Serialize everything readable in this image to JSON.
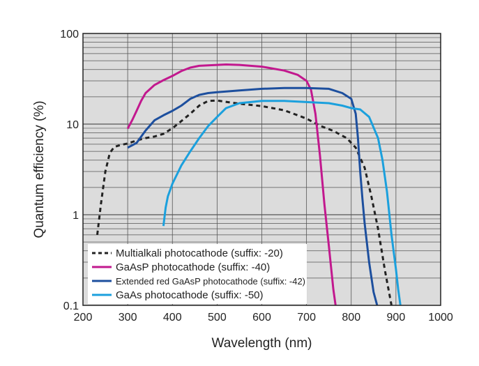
{
  "chart_data": {
    "type": "line",
    "xlabel": "Wavelength (nm)",
    "ylabel": "Quantum efficiency (%)",
    "xlim": [
      200,
      1000
    ],
    "ylim": [
      0.1,
      100
    ],
    "yscale": "log",
    "xticks": [
      200,
      300,
      400,
      500,
      600,
      700,
      800,
      900,
      1000
    ],
    "xtick_labels": [
      "200",
      "300",
      "400",
      "500",
      "600",
      "700",
      "800",
      "900",
      "1000"
    ],
    "yticks": [
      0.1,
      1,
      10,
      100
    ],
    "ytick_labels": [
      "0.1",
      "1",
      "10",
      "100"
    ],
    "grid": true,
    "legend_position": "bottom-left",
    "plot_background": "#dcdcdc",
    "series": [
      {
        "name": "Multialkali photocathode (suffix: -20)",
        "color": "#222222",
        "style": "dashed",
        "x": [
          232,
          240,
          250,
          260,
          270,
          285,
          300,
          320,
          340,
          360,
          380,
          400,
          420,
          440,
          460,
          480,
          500,
          520,
          550,
          600,
          650,
          700,
          730,
          760,
          790,
          810,
          830,
          845,
          860,
          875,
          890
        ],
        "y": [
          0.6,
          1.3,
          3.0,
          4.8,
          5.6,
          5.9,
          6.1,
          6.6,
          7.0,
          7.3,
          7.8,
          9.0,
          10.8,
          13.0,
          16.0,
          18.0,
          18.2,
          17.6,
          16.8,
          15.8,
          14.2,
          11.5,
          9.6,
          8.4,
          7.0,
          5.5,
          3.3,
          1.6,
          0.7,
          0.25,
          0.1
        ]
      },
      {
        "name": "GaAsP photocathode (suffix: -40)",
        "color": "#c2188e",
        "style": "solid",
        "x": [
          300,
          310,
          320,
          330,
          340,
          360,
          380,
          400,
          420,
          440,
          460,
          480,
          500,
          520,
          550,
          600,
          650,
          680,
          700,
          710,
          720,
          730,
          740,
          750,
          760,
          765
        ],
        "y": [
          8.9,
          11.0,
          14.0,
          18.0,
          22.0,
          27.0,
          30.5,
          34.0,
          38.5,
          42.0,
          44.0,
          44.5,
          45.0,
          45.5,
          45.0,
          43.0,
          39.0,
          35.0,
          30.0,
          24.0,
          13.0,
          4.5,
          1.3,
          0.45,
          0.15,
          0.1
        ]
      },
      {
        "name": "Extended red GaAsP photocathode (suffix: -42)",
        "color": "#1d4f9e",
        "style": "solid",
        "x": [
          300,
          320,
          340,
          360,
          380,
          400,
          420,
          440,
          460,
          480,
          500,
          550,
          600,
          650,
          700,
          750,
          780,
          800,
          810,
          815,
          820,
          825,
          830,
          840,
          850,
          858
        ],
        "y": [
          5.5,
          6.2,
          8.5,
          11.0,
          12.5,
          14.0,
          16.0,
          19.0,
          21.0,
          22.0,
          22.5,
          23.5,
          24.5,
          25.0,
          25.0,
          24.5,
          22.0,
          19.0,
          13.0,
          7.0,
          3.0,
          1.5,
          0.8,
          0.3,
          0.14,
          0.1
        ]
      },
      {
        "name": "GaAs photocathode (suffix: -50)",
        "color": "#1ba0dd",
        "style": "solid",
        "x": [
          380,
          385,
          390,
          400,
          420,
          440,
          460,
          480,
          500,
          520,
          550,
          600,
          650,
          700,
          750,
          780,
          800,
          820,
          840,
          860,
          870,
          880,
          890,
          900,
          905,
          910
        ],
        "y": [
          0.75,
          1.2,
          1.6,
          2.2,
          3.5,
          5.0,
          7.0,
          9.5,
          12.0,
          15.0,
          17.0,
          18.0,
          18.0,
          17.5,
          17.0,
          16.0,
          15.0,
          14.5,
          12.0,
          7.0,
          4.0,
          1.8,
          0.6,
          0.25,
          0.15,
          0.1
        ]
      }
    ]
  }
}
